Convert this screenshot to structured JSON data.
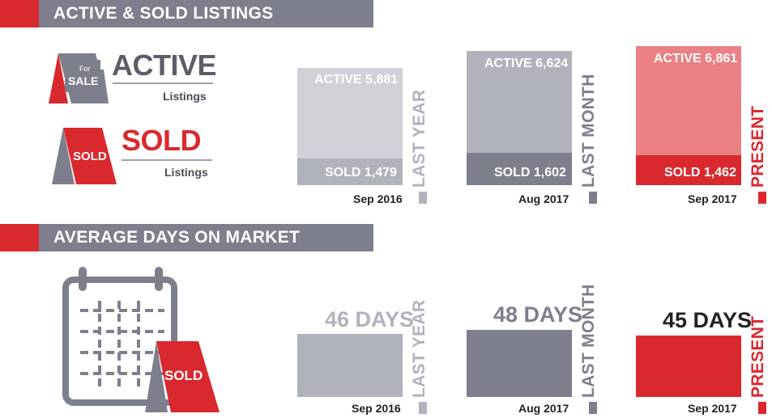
{
  "sections": {
    "listings_title": "ACTIVE & SOLD LISTINGS",
    "dom_title": "AVERAGE DAYS ON MARKET"
  },
  "legend": {
    "active_word": "ACTIVE",
    "active_sub": "Listings",
    "sold_word": "SOLD",
    "sold_sub": "Listings",
    "sign_for": "For",
    "sign_sale": "SALE",
    "sign_sold": "SOLD",
    "calendar_sign": "SOLD"
  },
  "colors": {
    "red": "#d9292e",
    "gray_dark": "#7d7f8c",
    "gray_mid": "#b1b3bc",
    "gray_light": "#d1d2d7",
    "pink": "#eb8185"
  },
  "icons": [
    "for-sale-sign-icon",
    "sold-sign-icon",
    "calendar-icon"
  ],
  "chart_data": [
    {
      "type": "bar",
      "title": "ACTIVE & SOLD LISTINGS",
      "categories": [
        "LAST YEAR",
        "LAST MONTH",
        "PRESENT"
      ],
      "dates": [
        "Sep 2016",
        "Aug 2017",
        "Sep 2017"
      ],
      "series": [
        {
          "name": "ACTIVE",
          "values": [
            5881,
            6624,
            6861
          ]
        },
        {
          "name": "SOLD",
          "values": [
            1479,
            1602,
            1462
          ]
        }
      ],
      "labels": {
        "active": [
          "ACTIVE 5,881",
          "ACTIVE 6,624",
          "ACTIVE 6,861"
        ],
        "sold": [
          "SOLD 1,479",
          "SOLD 1,602",
          "SOLD 1,462"
        ]
      }
    },
    {
      "type": "bar",
      "title": "AVERAGE DAYS ON MARKET",
      "categories": [
        "LAST YEAR",
        "LAST MONTH",
        "PRESENT"
      ],
      "dates": [
        "Sep 2016",
        "Aug 2017",
        "Sep 2017"
      ],
      "values": [
        46,
        48,
        45
      ],
      "labels": [
        "46 DAYS",
        "48 DAYS",
        "45 DAYS"
      ]
    }
  ]
}
